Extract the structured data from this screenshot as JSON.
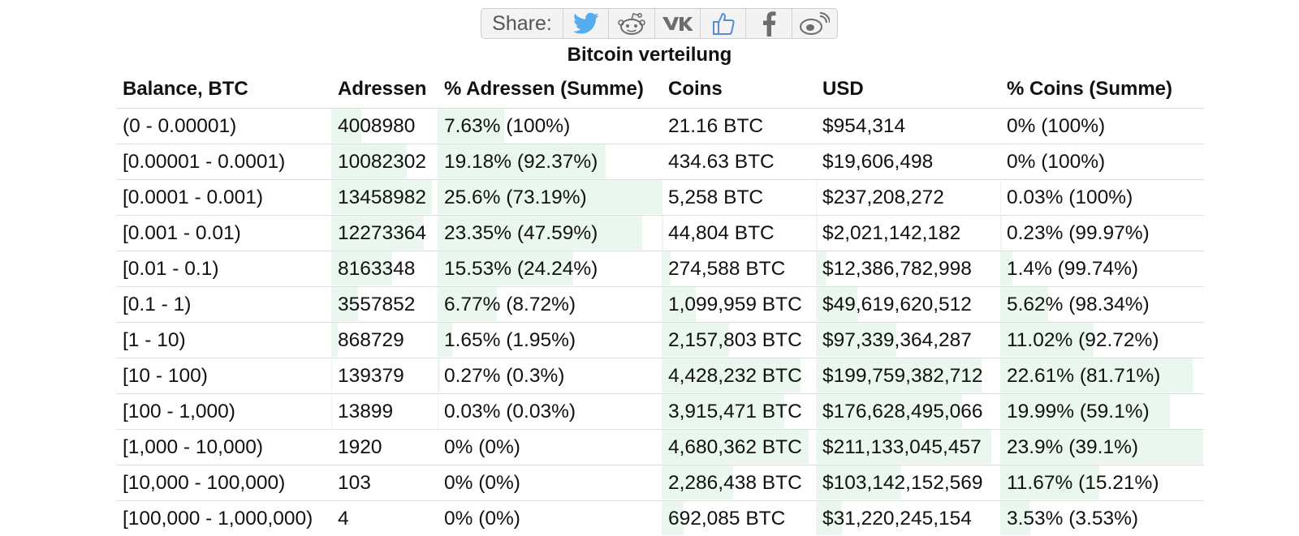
{
  "share": {
    "label": "Share:",
    "buttons": [
      {
        "icon": "twitter-icon",
        "color": "#55acee"
      },
      {
        "icon": "reddit-icon",
        "color": "#6d6d6d"
      },
      {
        "icon": "vk-icon",
        "color": "#6d6d6d"
      },
      {
        "icon": "like-icon",
        "color": "#5b8bd6"
      },
      {
        "icon": "facebook-icon",
        "color": "#6d6d6d"
      },
      {
        "icon": "weibo-icon",
        "color": "#6d6d6d"
      }
    ]
  },
  "title": "Bitcoin verteilung",
  "table": {
    "headers": [
      "Balance, BTC",
      "Adressen",
      "% Adressen (Summe)",
      "Coins",
      "USD",
      "% Coins (Summe)"
    ],
    "rows": [
      {
        "balance": "(0 - 0.00001)",
        "addresses": "4008980",
        "pct_addr": "7.63% (100%)",
        "coins": "21.16 BTC",
        "usd": "$954,314",
        "pct_coins": "0% (100%)"
      },
      {
        "balance": "[0.00001 - 0.0001)",
        "addresses": "10082302",
        "pct_addr": "19.18% (92.37%)",
        "coins": "434.63 BTC",
        "usd": "$19,606,498",
        "pct_coins": "0% (100%)"
      },
      {
        "balance": "[0.0001 - 0.001)",
        "addresses": "13458982",
        "pct_addr": "25.6% (73.19%)",
        "coins": "5,258 BTC",
        "usd": "$237,208,272",
        "pct_coins": "0.03% (100%)"
      },
      {
        "balance": "[0.001 - 0.01)",
        "addresses": "12273364",
        "pct_addr": "23.35% (47.59%)",
        "coins": "44,804 BTC",
        "usd": "$2,021,142,182",
        "pct_coins": "0.23% (99.97%)"
      },
      {
        "balance": "[0.01 - 0.1)",
        "addresses": "8163348",
        "pct_addr": "15.53% (24.24%)",
        "coins": "274,588 BTC",
        "usd": "$12,386,782,998",
        "pct_coins": "1.4% (99.74%)"
      },
      {
        "balance": "[0.1 - 1)",
        "addresses": "3557852",
        "pct_addr": "6.77% (8.72%)",
        "coins": "1,099,959 BTC",
        "usd": "$49,619,620,512",
        "pct_coins": "5.62% (98.34%)"
      },
      {
        "balance": "[1 - 10)",
        "addresses": "868729",
        "pct_addr": "1.65% (1.95%)",
        "coins": "2,157,803 BTC",
        "usd": "$97,339,364,287",
        "pct_coins": "11.02% (92.72%)"
      },
      {
        "balance": "[10 - 100)",
        "addresses": "139379",
        "pct_addr": "0.27% (0.3%)",
        "coins": "4,428,232 BTC",
        "usd": "$199,759,382,712",
        "pct_coins": "22.61% (81.71%)"
      },
      {
        "balance": "[100 - 1,000)",
        "addresses": "13899",
        "pct_addr": "0.03% (0.03%)",
        "coins": "3,915,471 BTC",
        "usd": "$176,628,495,066",
        "pct_coins": "19.99% (59.1%)"
      },
      {
        "balance": "[1,000 - 10,000)",
        "addresses": "1920",
        "pct_addr": "0% (0%)",
        "coins": "4,680,362 BTC",
        "usd": "$211,133,045,457",
        "pct_coins": "23.9% (39.1%)"
      },
      {
        "balance": "[10,000 - 100,000)",
        "addresses": "103",
        "pct_addr": "0% (0%)",
        "coins": "2,286,438 BTC",
        "usd": "$103,142,152,569",
        "pct_coins": "11.67% (15.21%)"
      },
      {
        "balance": "[100,000 - 1,000,000)",
        "addresses": "4",
        "pct_addr": "0% (0%)",
        "coins": "692,085 BTC",
        "usd": "$31,220,245,154",
        "pct_coins": "3.53% (3.53%)"
      }
    ]
  },
  "colors": {
    "bar_fill": "#eaf7ee",
    "row_border": "#dedede"
  }
}
